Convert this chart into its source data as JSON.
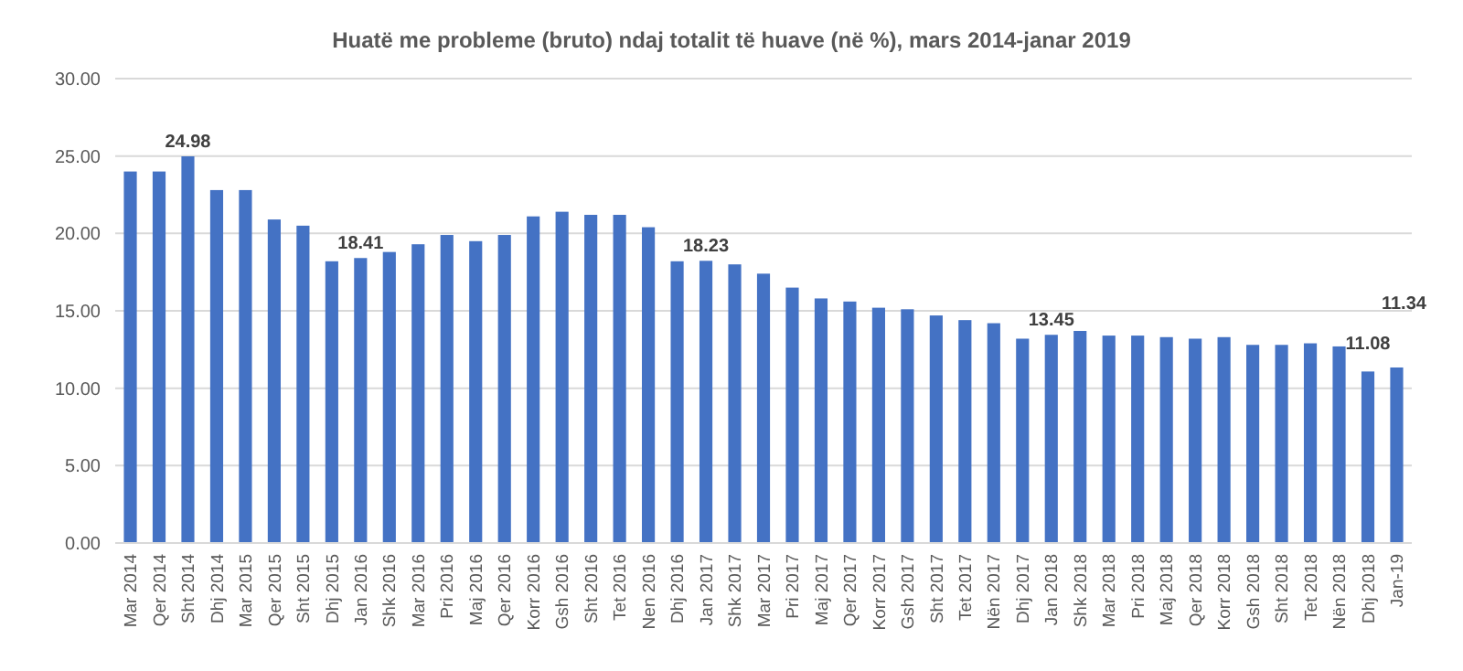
{
  "chart_data": {
    "type": "bar",
    "title": "Huatë me probleme (bruto) ndaj totalit të huave (në %), mars 2014-janar 2019",
    "categories": [
      "Mar 2014",
      "Qer 2014",
      "Sht 2014",
      "Dhj 2014",
      "Mar 2015",
      "Qer 2015",
      "Sht 2015",
      "Dhj 2015",
      "Jan 2016",
      "Shk 2016",
      "Mar 2016",
      "Pri 2016",
      "Maj 2016",
      "Qer 2016",
      "Korr 2016",
      "Gsh 2016",
      "Sht 2016",
      "Tet 2016",
      "Nen 2016",
      "Dhj 2016",
      "Jan 2017",
      "Shk 2017",
      "Mar 2017",
      "Pri 2017",
      "Maj 2017",
      "Qer 2017",
      "Korr 2017",
      "Gsh 2017",
      "Sht 2017",
      "Tet 2017",
      "Nën 2017",
      "Dhj 2017",
      "Jan 2018",
      "Shk 2018",
      "Mar 2018",
      "Pri 2018",
      "Maj 2018",
      "Qer 2018",
      "Korr 2018",
      "Gsh 2018",
      "Sht 2018",
      "Tet 2018",
      "Nën 2018",
      "Dhj 2018",
      "Jan-19"
    ],
    "values": [
      24.0,
      24.0,
      24.98,
      22.8,
      22.8,
      20.9,
      20.5,
      18.2,
      18.41,
      18.8,
      19.3,
      19.9,
      19.5,
      19.9,
      21.1,
      21.4,
      21.2,
      21.2,
      20.4,
      18.2,
      18.23,
      18.0,
      17.4,
      16.5,
      15.8,
      15.6,
      15.2,
      15.1,
      14.7,
      14.4,
      14.2,
      13.2,
      13.45,
      13.7,
      13.4,
      13.4,
      13.3,
      13.2,
      13.3,
      12.8,
      12.8,
      12.9,
      12.7,
      11.08,
      11.34
    ],
    "value_labels": [
      null,
      null,
      "24.98",
      null,
      null,
      null,
      null,
      null,
      "18.41",
      null,
      null,
      null,
      null,
      null,
      null,
      null,
      null,
      null,
      null,
      null,
      "18.23",
      null,
      null,
      null,
      null,
      null,
      null,
      null,
      null,
      null,
      null,
      null,
      "13.45",
      null,
      null,
      null,
      null,
      null,
      null,
      null,
      null,
      null,
      null,
      "11.08",
      "11.34"
    ],
    "color": "#4472c4",
    "ylim": [
      0,
      30
    ],
    "yticks": [
      {
        "value": 0,
        "label": "0.00"
      },
      {
        "value": 5,
        "label": "5.00"
      },
      {
        "value": 10,
        "label": "10.00"
      },
      {
        "value": 15,
        "label": "15.00"
      },
      {
        "value": 20,
        "label": "20.00"
      },
      {
        "value": 25,
        "label": "25.00"
      },
      {
        "value": 30,
        "label": "30.00"
      }
    ],
    "grid": "y"
  }
}
